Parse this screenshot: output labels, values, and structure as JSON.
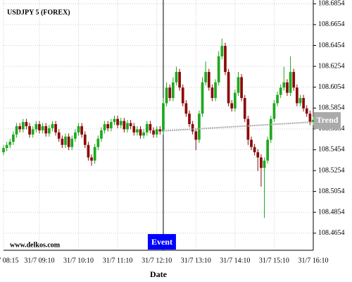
{
  "chart_data": {
    "type": "candlestick",
    "title": "USDJPY 5 (FOREX)",
    "x_label": "Date",
    "watermark": "www.delkos.com",
    "categories": [
      "31/7 08:15",
      null,
      null,
      null,
      null,
      null,
      null,
      null,
      null,
      null,
      null,
      "31/7 09:10",
      null,
      null,
      null,
      null,
      null,
      null,
      null,
      null,
      null,
      null,
      null,
      "31/7 10:10",
      null,
      null,
      null,
      null,
      null,
      null,
      null,
      null,
      null,
      null,
      null,
      "31/7 11:10",
      null,
      null,
      null,
      null,
      null,
      null,
      null,
      null,
      null,
      null,
      null,
      "31/7 12:10",
      null,
      null,
      null,
      null,
      null,
      null,
      null,
      null,
      null,
      null,
      null,
      "31/7 13:10",
      null,
      null,
      null,
      null,
      null,
      null,
      null,
      null,
      null,
      null,
      null,
      "31/7 14:10",
      null,
      null,
      null,
      null,
      null,
      null,
      null,
      null,
      null,
      null,
      null,
      "31/7 15:10",
      null,
      null,
      null,
      null,
      null,
      null,
      null,
      null,
      null,
      null,
      null,
      "31/7 16:10"
    ],
    "open": [
      108.543,
      108.547,
      108.55,
      108.553,
      108.56,
      108.568,
      108.565,
      108.572,
      108.568,
      108.56,
      108.565,
      108.57,
      108.564,
      108.568,
      108.561,
      108.566,
      108.57,
      108.562,
      108.556,
      108.55,
      108.558,
      108.548,
      108.556,
      108.562,
      108.568,
      108.56,
      108.55,
      108.538,
      108.535,
      108.548,
      108.556,
      108.564,
      108.57,
      108.566,
      108.572,
      108.575,
      108.569,
      108.573,
      108.565,
      108.571,
      108.568,
      108.562,
      108.565,
      108.559,
      108.562,
      108.57,
      108.564,
      108.56,
      108.565,
      108.563,
      108.59,
      108.605,
      108.595,
      108.61,
      108.62,
      108.605,
      108.59,
      108.58,
      108.57,
      108.563,
      108.555,
      108.58,
      108.61,
      108.62,
      108.605,
      108.595,
      108.61,
      108.635,
      108.645,
      108.62,
      108.59,
      108.585,
      108.6,
      108.615,
      108.595,
      108.575,
      108.555,
      108.548,
      108.543,
      108.538,
      108.528,
      108.535,
      108.555,
      108.575,
      108.59,
      108.598,
      108.605,
      108.61,
      108.6,
      108.62,
      108.605,
      108.59,
      108.595,
      108.585,
      108.58,
      108.572
    ],
    "high": [
      108.55,
      108.553,
      108.556,
      108.563,
      108.571,
      108.571,
      108.575,
      108.575,
      108.571,
      108.568,
      108.573,
      108.573,
      108.571,
      108.571,
      108.569,
      108.573,
      108.573,
      108.565,
      108.559,
      108.561,
      108.561,
      108.559,
      108.565,
      108.571,
      108.571,
      108.563,
      108.553,
      108.541,
      108.551,
      108.559,
      108.567,
      108.573,
      108.573,
      108.575,
      108.578,
      108.578,
      108.576,
      108.576,
      108.574,
      108.574,
      108.571,
      108.568,
      108.568,
      108.565,
      108.573,
      108.573,
      108.567,
      108.568,
      108.568,
      108.595,
      108.61,
      108.608,
      108.615,
      108.625,
      108.623,
      108.608,
      108.593,
      108.583,
      108.573,
      108.566,
      108.583,
      108.615,
      108.63,
      108.623,
      108.608,
      108.613,
      108.64,
      108.652,
      108.648,
      108.623,
      108.593,
      108.603,
      108.62,
      108.618,
      108.598,
      108.578,
      108.558,
      108.551,
      108.546,
      108.541,
      108.538,
      108.558,
      108.578,
      108.593,
      108.601,
      108.608,
      108.625,
      108.613,
      108.635,
      108.623,
      108.608,
      108.598,
      108.598,
      108.588,
      108.583,
      108.577
    ],
    "low": [
      108.54,
      108.544,
      108.547,
      108.55,
      108.557,
      108.562,
      108.562,
      108.565,
      108.557,
      108.557,
      108.562,
      108.561,
      108.561,
      108.558,
      108.558,
      108.563,
      108.559,
      108.553,
      108.547,
      108.547,
      108.545,
      108.545,
      108.553,
      108.559,
      108.557,
      108.547,
      108.535,
      108.53,
      108.532,
      108.545,
      108.553,
      108.561,
      108.563,
      108.563,
      108.569,
      108.566,
      108.566,
      108.562,
      108.562,
      108.565,
      108.559,
      108.559,
      108.556,
      108.556,
      108.559,
      108.561,
      108.557,
      108.557,
      108.56,
      108.56,
      108.587,
      108.592,
      108.592,
      108.607,
      108.602,
      108.587,
      108.577,
      108.567,
      108.56,
      108.545,
      108.552,
      108.577,
      108.607,
      108.602,
      108.592,
      108.592,
      108.607,
      108.632,
      108.617,
      108.587,
      108.582,
      108.582,
      108.597,
      108.592,
      108.572,
      108.55,
      108.545,
      108.54,
      108.525,
      108.51,
      108.48,
      108.532,
      108.552,
      108.572,
      108.587,
      108.595,
      108.602,
      108.597,
      108.597,
      108.602,
      108.587,
      108.587,
      108.582,
      108.577,
      108.569,
      108.569
    ],
    "close": [
      108.547,
      108.55,
      108.553,
      108.56,
      108.568,
      108.565,
      108.572,
      108.568,
      108.56,
      108.565,
      108.57,
      108.564,
      108.568,
      108.561,
      108.566,
      108.57,
      108.562,
      108.556,
      108.55,
      108.558,
      108.548,
      108.556,
      108.562,
      108.568,
      108.56,
      108.55,
      108.538,
      108.535,
      108.548,
      108.556,
      108.564,
      108.57,
      108.566,
      108.572,
      108.575,
      108.569,
      108.573,
      108.565,
      108.571,
      108.568,
      108.562,
      108.565,
      108.559,
      108.562,
      108.57,
      108.564,
      108.56,
      108.565,
      108.563,
      108.59,
      108.605,
      108.595,
      108.61,
      108.62,
      108.605,
      108.59,
      108.58,
      108.57,
      108.563,
      108.555,
      108.58,
      108.61,
      108.62,
      108.605,
      108.595,
      108.61,
      108.635,
      108.645,
      108.62,
      108.59,
      108.585,
      108.6,
      108.615,
      108.595,
      108.575,
      108.555,
      108.548,
      108.543,
      108.538,
      108.528,
      108.535,
      108.555,
      108.575,
      108.59,
      108.598,
      108.605,
      108.61,
      108.6,
      108.62,
      108.605,
      108.59,
      108.595,
      108.585,
      108.58,
      108.572,
      108.574
    ],
    "up_color": "#1fa81f",
    "down_color": "#8b0a0a",
    "ylim": [
      108.449,
      108.689
    ],
    "yticks": [
      108.4654,
      108.4854,
      108.5054,
      108.5254,
      108.5454,
      108.5654,
      108.5854,
      108.6054,
      108.6254,
      108.6454,
      108.6654,
      108.6854
    ],
    "grid": true,
    "event": {
      "label": "Event",
      "index": 49,
      "color": "#0000ff"
    },
    "trend": {
      "name": "Trend",
      "x": [
        49,
        95
      ],
      "values": [
        108.5635,
        108.572
      ],
      "color": "#aaaaaa"
    }
  }
}
